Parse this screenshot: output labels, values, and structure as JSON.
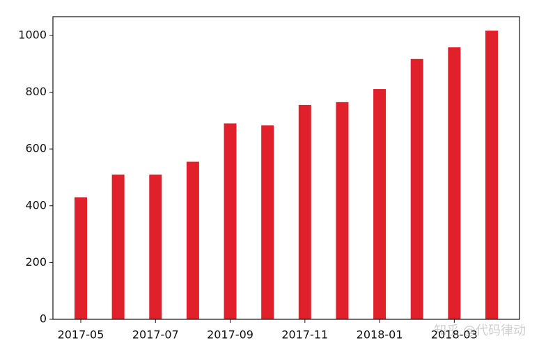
{
  "chart_data": {
    "type": "bar",
    "categories": [
      "2017-05",
      null,
      "2017-07",
      null,
      "2017-09",
      null,
      "2017-11",
      null,
      "2018-01",
      null,
      "2018-03",
      null
    ],
    "values": [
      430,
      510,
      510,
      555,
      690,
      683,
      755,
      765,
      811,
      917,
      958,
      1017
    ],
    "color": "#e0202a",
    "ylim": [
      0,
      1066
    ],
    "yticks": [
      0,
      200,
      400,
      600,
      800,
      1000
    ],
    "grid": false,
    "watermark": "知乎 @代码律动"
  }
}
